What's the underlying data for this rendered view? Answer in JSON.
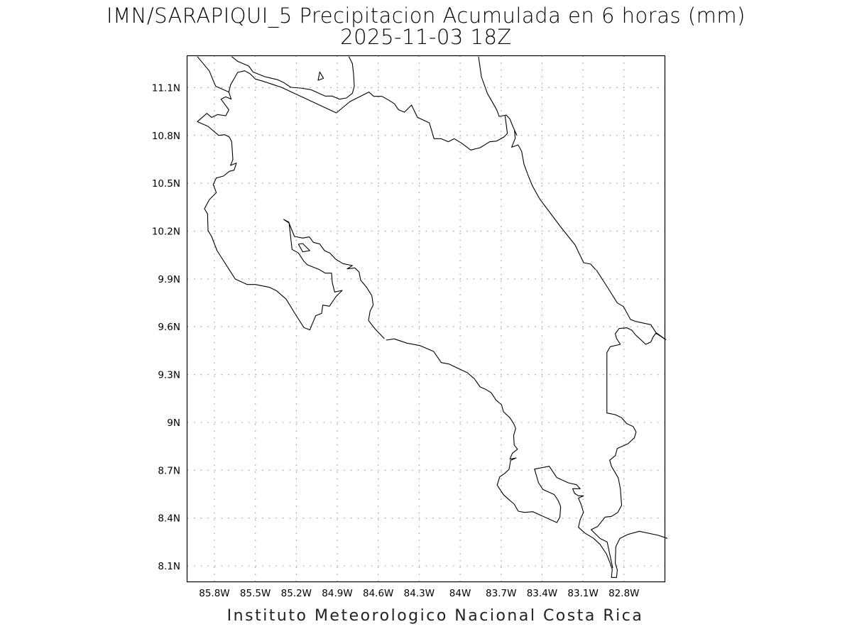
{
  "header": {
    "title": "IMN/SARAPIQUI_5 Precipitacion Acumulada en 6 horas (mm)",
    "subtitle": "2025-11-03 18Z"
  },
  "footer": {
    "credit": "Instituto Meteorologico Nacional Costa Rica"
  },
  "map": {
    "lon_range": [
      -86.0,
      -82.5
    ],
    "lat_range": [
      8.0,
      11.3
    ],
    "grid": true,
    "grid_style": "dotted",
    "grid_color": "#9a9a9a",
    "coastline_color": "#000000",
    "lon_ticks": [
      {
        "value": -85.8,
        "label": "85.8W"
      },
      {
        "value": -85.5,
        "label": "85.5W"
      },
      {
        "value": -85.2,
        "label": "85.2W"
      },
      {
        "value": -84.9,
        "label": "84.9W"
      },
      {
        "value": -84.6,
        "label": "84.6W"
      },
      {
        "value": -84.3,
        "label": "84.3W"
      },
      {
        "value": -84.0,
        "label": "84W"
      },
      {
        "value": -83.7,
        "label": "83.7W"
      },
      {
        "value": -83.4,
        "label": "83.4W"
      },
      {
        "value": -83.1,
        "label": "83.1W"
      },
      {
        "value": -82.8,
        "label": "82.8W"
      }
    ],
    "lat_ticks": [
      {
        "value": 11.1,
        "label": "11.1N"
      },
      {
        "value": 10.8,
        "label": "10.8N"
      },
      {
        "value": 10.5,
        "label": "10.5N"
      },
      {
        "value": 10.2,
        "label": "10.2N"
      },
      {
        "value": 9.9,
        "label": "9.9N"
      },
      {
        "value": 9.6,
        "label": "9.6N"
      },
      {
        "value": 9.3,
        "label": "9.3N"
      },
      {
        "value": 9.0,
        "label": "9N"
      },
      {
        "value": 8.7,
        "label": "8.7N"
      },
      {
        "value": 8.4,
        "label": "8.4N"
      },
      {
        "value": 8.1,
        "label": "8.1N"
      }
    ]
  }
}
